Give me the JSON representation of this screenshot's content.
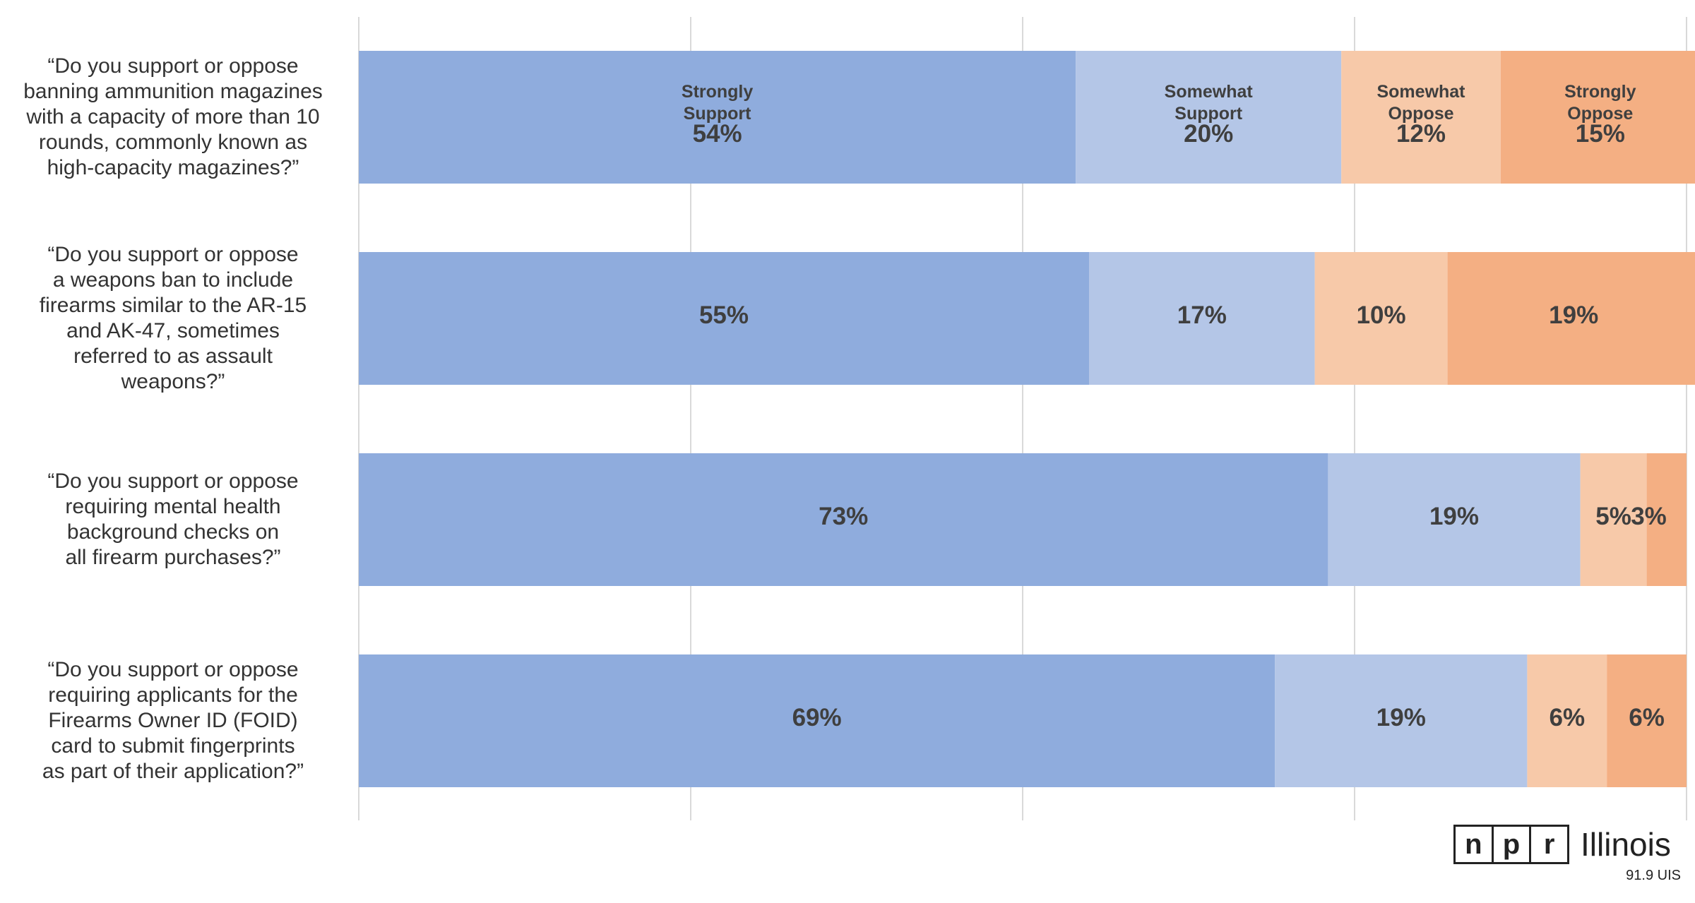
{
  "chart_data": {
    "type": "bar",
    "orientation": "horizontal",
    "stacked": true,
    "xlim": [
      0,
      100
    ],
    "grid": true,
    "categories": [
      "“Do you support or oppose banning ammunition magazines with a capacity of more than 10 rounds, commonly known as high-capacity magazines?”",
      "“Do you support or oppose a weapons ban to include firearms similar to the AR-15 and AK-47, sometimes referred to as assault weapons?”",
      "“Do you support or oppose requiring mental health background checks on all firearm purchases?”",
      "“Do you support or oppose requiring applicants for the Firearms Owner ID (FOID) card to submit fingerprints as part of their application?”"
    ],
    "category_lines": [
      [
        "“Do you support or oppose",
        "banning ammunition magazines",
        "with a capacity of more than 10",
        "rounds, commonly known as",
        "high-capacity magazines?”"
      ],
      [
        "“Do you support or oppose",
        "a weapons ban to include",
        "firearms similar to the AR-15",
        "and AK-47, sometimes",
        "referred to as assault",
        "weapons?”"
      ],
      [
        "“Do you support or oppose",
        "requiring mental health",
        "background checks on",
        "all firearm purchases?”"
      ],
      [
        "“Do you support or oppose",
        "requiring applicants for the",
        "Firearms Owner ID (FOID)",
        "card to submit fingerprints",
        "as part of their application?”"
      ]
    ],
    "series": [
      {
        "name": "Strongly Support",
        "name_lines": [
          "Strongly",
          "Support"
        ],
        "color": "#8FACDD",
        "values": [
          54,
          55,
          73,
          69
        ],
        "labels": [
          "54%",
          "55%",
          "73%",
          "69%"
        ]
      },
      {
        "name": "Somewhat Support",
        "name_lines": [
          "Somewhat",
          "Support"
        ],
        "color": "#B4C6E7",
        "values": [
          20,
          17,
          19,
          19
        ],
        "labels": [
          "20%",
          "17%",
          "19%",
          "19%"
        ]
      },
      {
        "name": "Somewhat Oppose",
        "name_lines": [
          "Somewhat",
          "Oppose"
        ],
        "color": "#F7C9A9",
        "values": [
          12,
          10,
          5,
          6
        ],
        "labels": [
          "12%",
          "10%",
          "5%",
          "6%"
        ]
      },
      {
        "name": "Strongly Oppose",
        "name_lines": [
          "Strongly",
          "Oppose"
        ],
        "color": "#F4AF83",
        "values": [
          15,
          19,
          3,
          6
        ],
        "labels": [
          "15%",
          "19%",
          "3%",
          "6%"
        ]
      }
    ],
    "legend": "inline-first-bar",
    "label_color": "#3F3F3F",
    "grid_color": "#D9D9D9"
  },
  "logo": {
    "letters": [
      "n",
      "p",
      "r"
    ],
    "name": "Illinois",
    "sub": "91.9 UIS"
  }
}
